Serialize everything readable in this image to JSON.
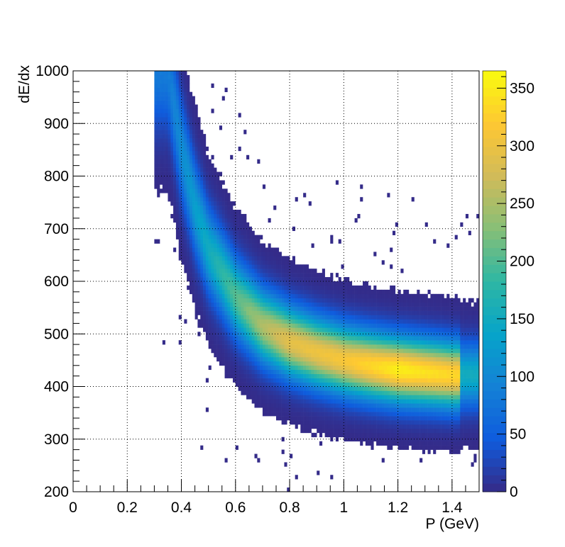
{
  "chart_data": {
    "type": "heatmap",
    "title": "",
    "xlabel": "P (GeV)",
    "ylabel": "dE/dx",
    "xlim": [
      0,
      1.5
    ],
    "ylim": [
      200,
      1000
    ],
    "grid": true,
    "x_ticks": [
      "0",
      "0.2",
      "0.4",
      "0.6",
      "0.8",
      "1",
      "1.2",
      "1.4"
    ],
    "y_ticks": [
      "200",
      "300",
      "400",
      "500",
      "600",
      "700",
      "800",
      "900",
      "1000"
    ],
    "colorbar": {
      "range": [
        0,
        365
      ],
      "ticks": [
        "0",
        "50",
        "100",
        "150",
        "200",
        "250",
        "300",
        "350"
      ],
      "palette": [
        "#352a87",
        "#0f5cdd",
        "#1481d6",
        "#06a4ca",
        "#2eb7a4",
        "#87bf77",
        "#d1bb59",
        "#fec832",
        "#f9fb0e"
      ]
    },
    "band_centerline": [
      {
        "x": 0.35,
        "y": 1000
      },
      {
        "x": 0.4,
        "y": 850
      },
      {
        "x": 0.45,
        "y": 740
      },
      {
        "x": 0.5,
        "y": 660
      },
      {
        "x": 0.6,
        "y": 570
      },
      {
        "x": 0.7,
        "y": 515
      },
      {
        "x": 0.8,
        "y": 485
      },
      {
        "x": 0.9,
        "y": 465
      },
      {
        "x": 1.0,
        "y": 450
      },
      {
        "x": 1.1,
        "y": 440
      },
      {
        "x": 1.2,
        "y": 432
      },
      {
        "x": 1.3,
        "y": 427
      },
      {
        "x": 1.4,
        "y": 422
      }
    ],
    "peak_counts": [
      {
        "x": 0.35,
        "count": 80
      },
      {
        "x": 0.5,
        "count": 150
      },
      {
        "x": 0.6,
        "count": 200
      },
      {
        "x": 0.7,
        "count": 250
      },
      {
        "x": 0.8,
        "count": 290
      },
      {
        "x": 1.0,
        "count": 310
      },
      {
        "x": 1.2,
        "count": 350
      },
      {
        "x": 1.4,
        "count": 330
      }
    ]
  }
}
